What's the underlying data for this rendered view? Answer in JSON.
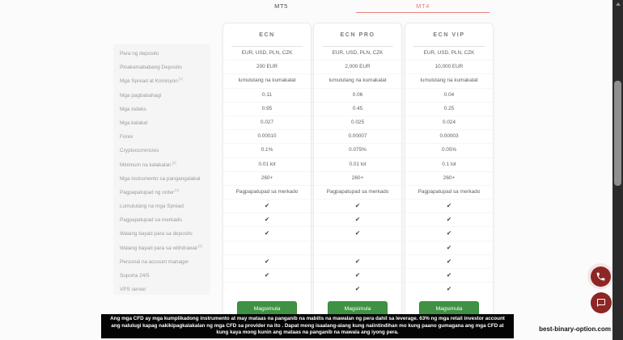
{
  "tabs": [
    {
      "label": "MT5"
    },
    {
      "label": "MT4"
    }
  ],
  "active_tab": "MT4",
  "plans": [
    {
      "name": "ECN",
      "button_label": "Magsimula"
    },
    {
      "name": "ECN PRO",
      "button_label": "Magsimula"
    },
    {
      "name": "ECN VIP",
      "button_label": "Magsimula"
    }
  ],
  "features": [
    {
      "label": "Pera ng deposito",
      "sup": "",
      "values": [
        "EUR, USD, PLN, CZK",
        "EUR, USD, PLN, CZK",
        "EUR, USD, PLN, CZK"
      ]
    },
    {
      "label": "Pinakamababang Deposito",
      "sup": "",
      "values": [
        "200 EUR",
        "2,000 EUR",
        "10,000 EUR"
      ]
    },
    {
      "label": "Mga Spread at Komisyon",
      "sup": "[1]",
      "values": [
        "lumulutang na kumakalat",
        "lumulutang na kumakalat",
        "lumulutang na kumakalat"
      ]
    },
    {
      "label": "Mga pagbabahagi",
      "sup": "",
      "values": [
        "0.11",
        "0.06",
        "0.04"
      ]
    },
    {
      "label": "Mga indeks",
      "sup": "",
      "values": [
        "0.95",
        "0.45",
        "0.25"
      ]
    },
    {
      "label": "Mga kalakal",
      "sup": "",
      "values": [
        "0.027",
        "0.025",
        "0.024"
      ]
    },
    {
      "label": "Forex",
      "sup": "",
      "values": [
        "0.00010",
        "0.00007",
        "0.00003"
      ]
    },
    {
      "label": "Cryptocurrencies",
      "sup": "",
      "values": [
        "0.1%",
        "0.075%",
        "0.05%"
      ]
    },
    {
      "label": "Minimum na kalakalan",
      "sup": "[2]",
      "values": [
        "0.01 lot",
        "0.01 lot",
        "0.1 lot"
      ]
    },
    {
      "label": "Mga instrumento sa pangangalakal",
      "sup": "",
      "values": [
        "260+",
        "260+",
        "260+"
      ]
    },
    {
      "label": "Pagpapatupad ng order",
      "sup": "[3]",
      "values": [
        "Pagpapatupad sa merkado",
        "Pagpapatupad sa merkado",
        "Pagpapatupad sa merkado"
      ]
    },
    {
      "label": "Lumulutang na mga Spread",
      "sup": "",
      "values": [
        "✔",
        "✔",
        "✔"
      ]
    },
    {
      "label": "Pagpapatupad sa merkado",
      "sup": "",
      "values": [
        "✔",
        "✔",
        "✔"
      ]
    },
    {
      "label": "Walang bayad para sa deposito",
      "sup": "",
      "values": [
        "✔",
        "✔",
        "✔"
      ]
    },
    {
      "label": "Walang bayad para sa withdrawal",
      "sup": "[4]",
      "values": [
        "",
        "",
        "✔"
      ]
    },
    {
      "label": "Personal na account manager",
      "sup": "",
      "values": [
        "✔",
        "✔",
        "✔"
      ]
    },
    {
      "label": "Suporta 24/5",
      "sup": "",
      "values": [
        "✔",
        "✔",
        "✔"
      ]
    },
    {
      "label": "VPS server",
      "sup": "",
      "values": [
        "",
        "✔",
        "✔"
      ]
    }
  ],
  "disclaimer": "Ang mga CFD ay mga kumplikadong instrumento at may mataas na panganib na mabilis na mawalan ng pera dahil sa leverage. 63% ng mga retail investor account ang nalulugi kapag nakikipagkalakalan ng mga CFD sa provider na ito . Dapat mong isaalang-alang kung naiintindihan mo kung paano gumagana ang mga CFD at kung kaya mong kunin ang mataas na panganib na mawala ang iyong pera.",
  "watermark": "best-binary-option.com",
  "icons": {
    "phone": "phone-icon",
    "chat": "chat-bubble-icon",
    "scroll_up": "scroll-up-arrow-icon"
  },
  "colors": {
    "accent_red": "#e8837a",
    "button_green": "#3f9243",
    "bubble_dark_red": "#8d2626",
    "check": "#3c3c3c",
    "sidebar_bg": "#f5f5f5",
    "disclaimer_bg": "#040404"
  }
}
